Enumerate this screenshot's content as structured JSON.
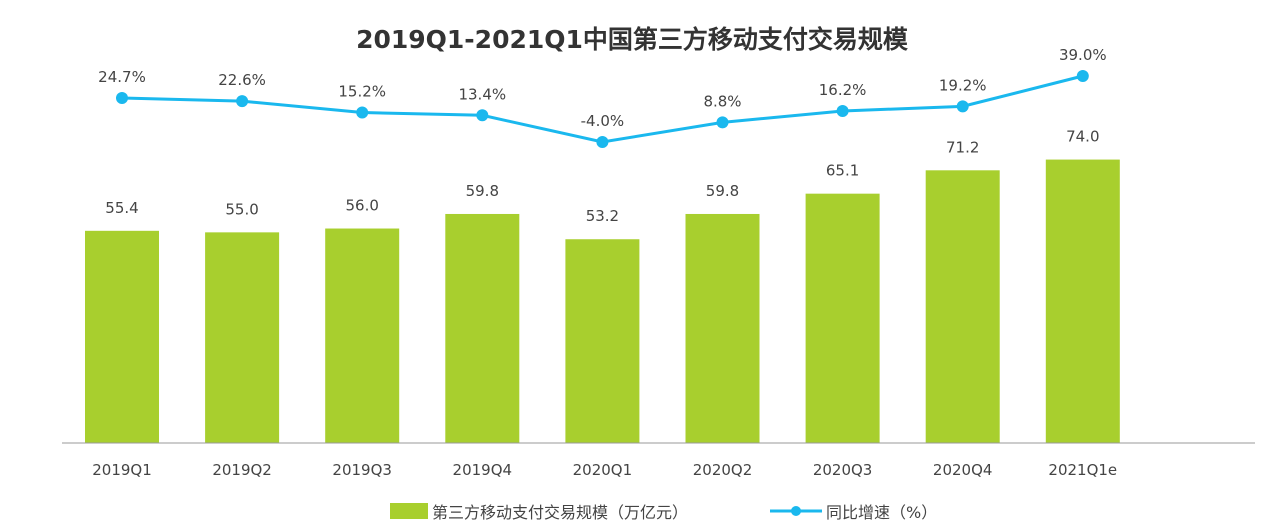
{
  "chart_data": {
    "type": "bar+line",
    "title": "2019Q1-2021Q1中国第三方移动支付交易规模",
    "categories": [
      "2019Q1",
      "2019Q2",
      "2019Q3",
      "2019Q4",
      "2020Q1",
      "2020Q2",
      "2020Q3",
      "2020Q4",
      "2021Q1e"
    ],
    "series": [
      {
        "name": "第三方移动支付交易规模（万亿元）",
        "type": "bar",
        "color": "#a8cf2e",
        "values": [
          55.4,
          55.0,
          56.0,
          59.8,
          53.2,
          59.8,
          65.1,
          71.2,
          74.0
        ],
        "labels": [
          "55.4",
          "55.0",
          "56.0",
          "59.8",
          "53.2",
          "59.8",
          "65.1",
          "71.2",
          "74.0"
        ]
      },
      {
        "name": "同比增速（%）",
        "type": "line",
        "color": "#1ab8ee",
        "values": [
          24.7,
          22.6,
          15.2,
          13.4,
          -4.0,
          8.8,
          16.2,
          19.2,
          39.0
        ],
        "labels": [
          "24.7%",
          "22.6%",
          "15.2%",
          "13.4%",
          "-4.0%",
          "8.8%",
          "16.2%",
          "19.2%",
          "39.0%"
        ]
      }
    ],
    "legend": "bottom",
    "grid": false
  }
}
